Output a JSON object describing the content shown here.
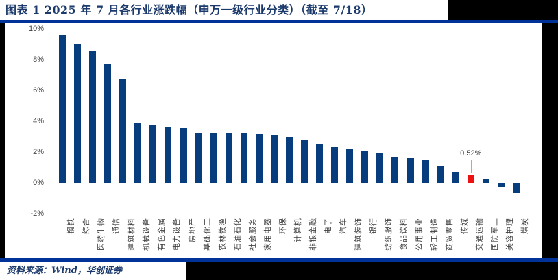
{
  "figure": {
    "title": "图表 1  2025 年 7 月各行业涨跌幅（申万一级行业分类）（截至 7/18）",
    "source": "资料来源：Wind，华创证券"
  },
  "colors": {
    "bar": "#073C7D",
    "highlight": "#EE1111",
    "rule": "#003399",
    "title_text": "#1B3A6B",
    "axis_line": "#D9D9D9",
    "tick_text": "#3f3f3f",
    "page_background": "#000000",
    "panel_background": "#ffffff"
  },
  "chart_data": {
    "type": "bar",
    "title": "2025 年 7 月各行业涨跌幅（申万一级行业分类）（截至 7/18）",
    "categories": [
      "钢铁",
      "综合",
      "医药生物",
      "通信",
      "建筑材料",
      "机械设备",
      "有色金属",
      "电力设备",
      "房地产",
      "基础化工",
      "农林牧渔",
      "石油石化",
      "社会服务",
      "家用电器",
      "环保",
      "计算机",
      "非银金融",
      "电子",
      "汽车",
      "建筑装饰",
      "银行",
      "纺织服饰",
      "食品饮料",
      "公用事业",
      "轻工制造",
      "商贸零售",
      "传媒",
      "交通运输",
      "国防军工",
      "美容护理",
      "煤炭"
    ],
    "values": [
      9.6,
      9.0,
      8.6,
      7.7,
      6.7,
      3.9,
      3.8,
      3.65,
      3.55,
      3.25,
      3.2,
      3.2,
      3.18,
      3.15,
      3.1,
      3.0,
      2.8,
      2.5,
      2.3,
      2.2,
      2.1,
      1.9,
      1.7,
      1.6,
      1.45,
      1.1,
      0.7,
      0.52,
      0.22,
      -0.22,
      -0.63
    ],
    "unit": "%",
    "xlabel": "",
    "ylabel": "",
    "ylim": [
      -2,
      10
    ],
    "yticks": [
      "10%",
      "8%",
      "6%",
      "4%",
      "2%",
      "0%",
      "-2%"
    ],
    "grid": false,
    "legend": false,
    "highlight": {
      "category": "交通运输",
      "index": 27,
      "value": 0.52,
      "label": "0.52%"
    }
  }
}
